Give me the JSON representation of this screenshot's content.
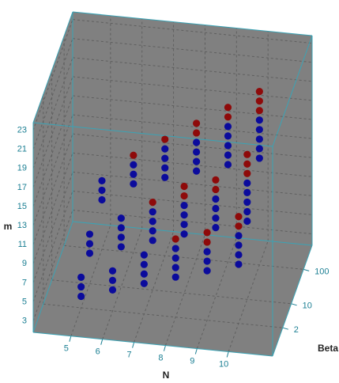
{
  "chart_data": {
    "type": "scatter3d",
    "x_label": "N",
    "y_label": "Beta",
    "z_label": "m",
    "xlim": [
      3.8,
      11.4
    ],
    "xticks": [
      5,
      6,
      7,
      8,
      9,
      10
    ],
    "ylim": [
      0.3,
      500
    ],
    "yticks": [
      2,
      10,
      100
    ],
    "y_scale": "log",
    "zlim": [
      1.8,
      23.8
    ],
    "zticks": [
      3,
      5,
      7,
      9,
      11,
      13,
      15,
      17,
      19,
      21,
      23
    ],
    "grid": true,
    "series": [
      {
        "color": "#0b0b9c",
        "x": [
          5,
          5,
          5,
          5,
          5,
          5,
          5,
          5,
          5,
          6,
          6,
          6,
          6,
          6,
          6,
          6,
          6,
          6,
          6,
          7,
          7,
          7,
          7,
          7,
          7,
          7,
          7,
          7,
          7,
          7,
          7,
          8,
          8,
          8,
          8,
          8,
          8,
          8,
          8,
          8,
          8,
          8,
          8,
          9,
          9,
          9,
          9,
          9,
          9,
          9,
          9,
          9,
          9,
          9,
          9,
          10,
          10,
          10,
          10,
          10,
          10,
          10,
          10,
          10,
          10,
          10,
          10,
          10,
          10
        ],
        "y": [
          2,
          2,
          2,
          10,
          10,
          10,
          100,
          100,
          100,
          2,
          2,
          2,
          10,
          10,
          10,
          10,
          100,
          100,
          100,
          2,
          2,
          2,
          2,
          10,
          10,
          10,
          10,
          100,
          100,
          100,
          100,
          2,
          2,
          2,
          2,
          10,
          10,
          10,
          10,
          100,
          100,
          100,
          100,
          2,
          2,
          2,
          10,
          10,
          10,
          10,
          100,
          100,
          100,
          100,
          100,
          2,
          2,
          2,
          2,
          10,
          10,
          10,
          10,
          10,
          100,
          100,
          100,
          100,
          100
        ],
        "z": [
          3,
          4,
          5,
          5,
          6,
          7,
          7,
          8,
          9,
          4,
          5,
          6,
          6,
          7,
          8,
          9,
          9,
          10,
          11,
          5,
          6,
          7,
          8,
          7,
          8,
          9,
          10,
          10,
          11,
          12,
          13,
          6,
          7,
          8,
          9,
          8,
          9,
          10,
          11,
          11,
          12,
          13,
          14,
          7,
          8,
          9,
          9,
          10,
          11,
          12,
          12,
          13,
          14,
          15,
          16,
          8,
          9,
          10,
          11,
          10,
          11,
          12,
          13,
          14,
          13,
          14,
          15,
          16,
          17
        ]
      },
      {
        "color": "#8e0a0a",
        "x": [
          6,
          7,
          7,
          8,
          8,
          8,
          8,
          8,
          9,
          9,
          9,
          9,
          9,
          9,
          10,
          10,
          10,
          10,
          10,
          10,
          10,
          10
        ],
        "y": [
          100,
          10,
          100,
          2,
          10,
          10,
          100,
          100,
          2,
          2,
          10,
          10,
          100,
          100,
          2,
          2,
          10,
          10,
          10,
          100,
          100,
          100
        ],
        "z": [
          12,
          11,
          14,
          10,
          12,
          13,
          15,
          16,
          10,
          11,
          13,
          14,
          17,
          18,
          12,
          13,
          15,
          16,
          17,
          18,
          19,
          20
        ]
      }
    ]
  }
}
